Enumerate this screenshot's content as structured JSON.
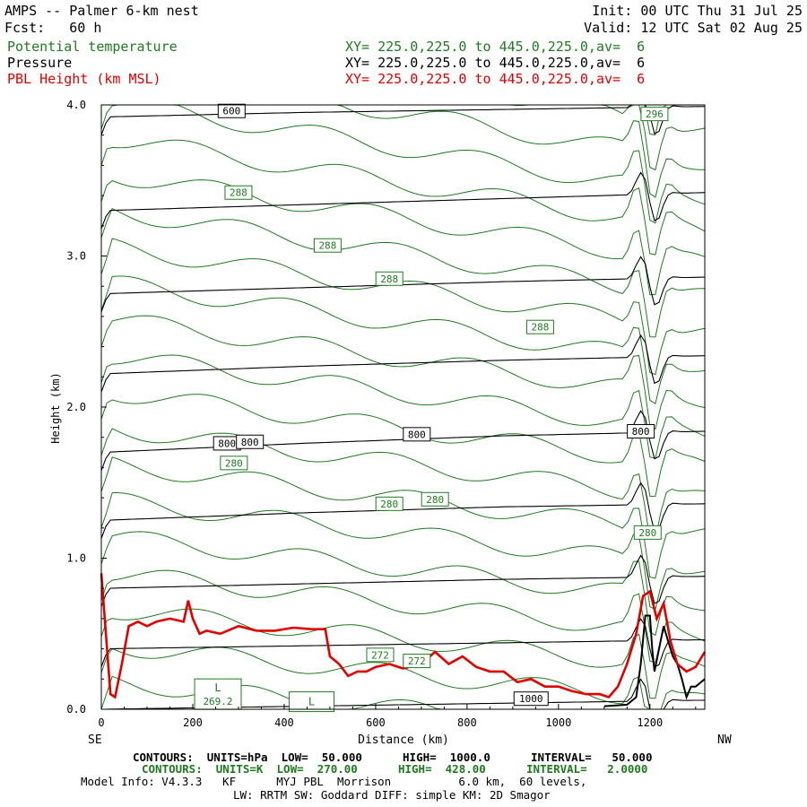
{
  "header": {
    "title": "AMPS -- Palmer 6-km nest",
    "fcst": "Fcst:   60 h",
    "init": "Init: 00 UTC Thu 31 Jul 25",
    "valid": "Valid: 12 UTC Sat 02 Aug 25",
    "fields": [
      {
        "name": "Potential temperature",
        "xy": "XY= 225.0,225.0 to 445.0,225.0,av=  6",
        "color": "#1f7a1f"
      },
      {
        "name": "Pressure",
        "xy": "XY= 225.0,225.0 to 445.0,225.0,av=  6",
        "color": "#000000"
      },
      {
        "name": "PBL Height (km MSL)",
        "xy": "XY= 225.0,225.0 to 445.0,225.0,av=  6",
        "color": "#e00000"
      }
    ]
  },
  "footer": {
    "pressure_contours": "CONTOURS:  UNITS=hPa  LOW=  50.000      HIGH=  1000.0      INTERVAL=   50.000",
    "theta_contours": "CONTOURS:  UNITS=K  LOW=  270.00      HIGH=  428.00      INTERVAL=   2.0000",
    "model_info": "Model Info: V4.3.3   KF      MYJ PBL  Morrison          6.0 km,  60 levels,",
    "model_info2": "LW: RRTM SW: Goddard DIFF: simple KM: 2D Smagor"
  },
  "chart_data": {
    "type": "line",
    "xlabel": "Distance (km)",
    "ylabel": "Height (km)",
    "x_left_label": "SE",
    "x_right_label": "NW",
    "xlim": [
      0,
      1320
    ],
    "ylim": [
      0,
      4.0
    ],
    "x_ticks": [
      0,
      200,
      400,
      600,
      800,
      1000,
      1200
    ],
    "y_ticks": [
      "0.0",
      "1.0",
      "2.0",
      "3.0",
      "4.0"
    ],
    "grid": false,
    "pbl_height": {
      "name": "PBL Height (km MSL)",
      "color": "#e00000",
      "x": [
        0,
        10,
        20,
        30,
        45,
        60,
        80,
        100,
        120,
        150,
        180,
        190,
        200,
        215,
        230,
        260,
        300,
        340,
        380,
        420,
        460,
        490,
        500,
        520,
        540,
        560,
        580,
        600,
        630,
        660,
        700,
        730,
        760,
        790,
        820,
        850,
        880,
        910,
        940,
        970,
        1000,
        1030,
        1060,
        1090,
        1110,
        1130,
        1150,
        1170,
        1185,
        1200,
        1215,
        1230,
        1245,
        1260,
        1280,
        1300,
        1320
      ],
      "y": [
        0.9,
        0.5,
        0.1,
        0.08,
        0.3,
        0.55,
        0.58,
        0.55,
        0.58,
        0.6,
        0.58,
        0.72,
        0.6,
        0.5,
        0.52,
        0.5,
        0.55,
        0.52,
        0.52,
        0.54,
        0.53,
        0.53,
        0.35,
        0.3,
        0.22,
        0.25,
        0.25,
        0.28,
        0.3,
        0.27,
        0.3,
        0.38,
        0.3,
        0.35,
        0.28,
        0.25,
        0.25,
        0.18,
        0.2,
        0.15,
        0.15,
        0.12,
        0.1,
        0.1,
        0.08,
        0.15,
        0.3,
        0.5,
        0.75,
        0.78,
        0.6,
        0.7,
        0.45,
        0.3,
        0.25,
        0.28,
        0.38
      ]
    },
    "terrain": {
      "color": "#000000",
      "x": [
        1100,
        1150,
        1170,
        1180,
        1190,
        1200,
        1205,
        1210,
        1220,
        1230,
        1240,
        1250,
        1260,
        1270,
        1280,
        1290,
        1300,
        1320
      ],
      "y": [
        0.02,
        0.03,
        0.08,
        0.3,
        0.62,
        0.62,
        0.4,
        0.25,
        0.4,
        0.55,
        0.45,
        0.35,
        0.3,
        0.2,
        0.08,
        0.15,
        0.15,
        0.2
      ]
    },
    "pressure_hPa": {
      "color": "#000000",
      "levels": [
        {
          "value": 1000,
          "label": "1000",
          "y": [
            0.0,
            0.02,
            0.04,
            0.06
          ],
          "label_x": 940,
          "label_y": 0.07
        },
        {
          "value": 950,
          "y": [
            0.4,
            0.42,
            0.44,
            0.46
          ]
        },
        {
          "value": 900,
          "y": [
            0.8,
            0.83,
            0.86,
            0.88
          ]
        },
        {
          "value": 850,
          "y": [
            1.25,
            1.3,
            1.34,
            1.36
          ]
        },
        {
          "value": 800,
          "label": "800",
          "y": [
            1.7,
            1.76,
            1.81,
            1.84
          ],
          "label_x": [
            275,
            325,
            690,
            1180
          ],
          "label_y": [
            1.76,
            1.77,
            1.82,
            1.84
          ]
        },
        {
          "value": 750,
          "y": [
            2.22,
            2.27,
            2.31,
            2.34
          ]
        },
        {
          "value": 700,
          "y": [
            2.75,
            2.79,
            2.83,
            2.86
          ]
        },
        {
          "value": 650,
          "y": [
            3.3,
            3.34,
            3.38,
            3.42
          ]
        },
        {
          "value": 600,
          "label": "600",
          "y": [
            3.92,
            3.95,
            3.97,
            3.99
          ],
          "label_x": 285,
          "label_y": 3.96
        }
      ]
    },
    "theta_K": {
      "color": "#1f7a1f",
      "labels": [
        {
          "text": "296",
          "x": 1210,
          "y": 3.94
        },
        {
          "text": "288",
          "x": 300,
          "y": 3.42
        },
        {
          "text": "288",
          "x": 495,
          "y": 3.07
        },
        {
          "text": "288",
          "x": 630,
          "y": 2.85
        },
        {
          "text": "288",
          "x": 960,
          "y": 2.53
        },
        {
          "text": "280",
          "x": 290,
          "y": 1.63
        },
        {
          "text": "280",
          "x": 630,
          "y": 1.36
        },
        {
          "text": "280",
          "x": 730,
          "y": 1.39
        },
        {
          "text": "280",
          "x": 1195,
          "y": 1.17
        },
        {
          "text": "272",
          "x": 610,
          "y": 0.36
        },
        {
          "text": "272",
          "x": 690,
          "y": 0.32
        }
      ]
    },
    "annotations": [
      {
        "text": "L",
        "sub": "269.2",
        "x": 255,
        "y": 0.1
      },
      {
        "text": "L",
        "x": 460,
        "y": 0.05
      }
    ]
  }
}
